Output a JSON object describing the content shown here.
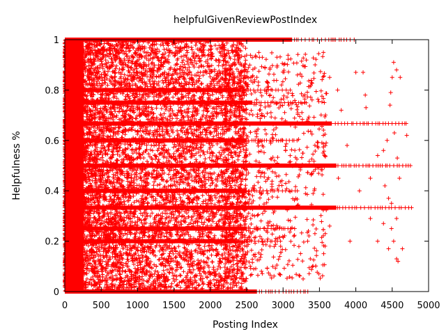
{
  "chart_data": {
    "type": "scatter",
    "title": "helpfulGivenReviewPostIndex",
    "xlabel": "Posting Index",
    "ylabel": "Helpfulness %",
    "xlim": [
      0,
      5000
    ],
    "ylim": [
      0,
      1
    ],
    "xticks": [
      "0",
      "500",
      "1000",
      "1500",
      "2000",
      "2500",
      "3000",
      "3500",
      "4000",
      "4500",
      "5000"
    ],
    "yticks": [
      "0",
      "0.2",
      "0.4",
      "0.6",
      "0.8",
      "1"
    ],
    "marker": "+",
    "color": "#ff0000",
    "grid": false,
    "legend": "none",
    "series": [
      {
        "dense_region": {
          "x_range": [
            0,
            2200
          ],
          "y_range": [
            0,
            1
          ]
        },
        "band_rows": [
          {
            "y": 1.0,
            "x_end": 4000
          },
          {
            "y": 0.0,
            "x_end": 3380
          },
          {
            "y": 0.5,
            "x_end": 4780
          },
          {
            "y": 0.667,
            "x_end": 4700
          },
          {
            "y": 0.333,
            "x_end": 4780
          },
          {
            "y": 0.75,
            "x_end": 3300
          },
          {
            "y": 0.25,
            "x_end": 3200
          },
          {
            "y": 0.8,
            "x_end": 3100
          },
          {
            "y": 0.2,
            "x_end": 3000
          },
          {
            "y": 0.6,
            "x_end": 3200
          },
          {
            "y": 0.4,
            "x_end": 3200
          }
        ],
        "sparse_points": [
          [
            4000,
            0.87
          ],
          [
            4100,
            0.87
          ],
          [
            4520,
            0.91
          ],
          [
            4560,
            0.88
          ],
          [
            4610,
            0.85
          ],
          [
            4500,
            0.85
          ],
          [
            4130,
            0.78
          ],
          [
            4140,
            0.73
          ],
          [
            4480,
            0.79
          ],
          [
            3750,
            0.8
          ],
          [
            3640,
            0.85
          ],
          [
            4530,
            0.63
          ],
          [
            4430,
            0.6
          ],
          [
            4380,
            0.56
          ],
          [
            4300,
            0.54
          ],
          [
            4200,
            0.45
          ],
          [
            4050,
            0.4
          ],
          [
            4400,
            0.42
          ],
          [
            4450,
            0.37
          ],
          [
            4490,
            0.35
          ],
          [
            4560,
            0.29
          ],
          [
            4490,
            0.25
          ],
          [
            4520,
            0.2
          ],
          [
            4450,
            0.17
          ],
          [
            4640,
            0.17
          ],
          [
            4560,
            0.13
          ],
          [
            4580,
            0.12
          ],
          [
            4300,
            0.2
          ],
          [
            3640,
            0.26
          ],
          [
            4200,
            0.29
          ],
          [
            3920,
            0.2
          ],
          [
            4470,
            0.74
          ],
          [
            4570,
            0.53
          ],
          [
            3880,
            0.58
          ],
          [
            3760,
            0.45
          ],
          [
            3800,
            0.72
          ],
          [
            4380,
            0.27
          ],
          [
            4700,
            0.62
          ],
          [
            4600,
            0.45
          ],
          [
            3550,
            0.55
          ]
        ]
      }
    ]
  }
}
